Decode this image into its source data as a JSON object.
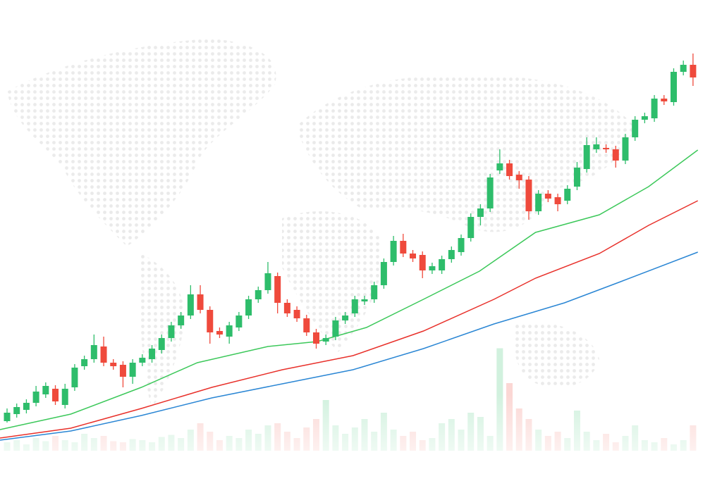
{
  "chart_data": {
    "type": "candlestick",
    "xlim": [
      -0.73,
      74
    ],
    "ylim": [
      0,
      683
    ],
    "up_color": "#2ebd6b",
    "down_color": "#ef4a3c",
    "candles": [
      [
        85,
        103,
        83,
        97
      ],
      [
        95,
        110,
        90,
        105
      ],
      [
        101,
        116,
        96,
        111
      ],
      [
        111,
        135,
        106,
        127
      ],
      [
        123,
        140,
        118,
        135
      ],
      [
        131,
        136,
        108,
        113
      ],
      [
        108,
        138,
        103,
        131
      ],
      [
        133,
        166,
        128,
        161
      ],
      [
        163,
        178,
        158,
        173
      ],
      [
        173,
        208,
        168,
        193
      ],
      [
        191,
        205,
        163,
        168
      ],
      [
        168,
        173,
        158,
        163
      ],
      [
        165,
        170,
        133,
        148
      ],
      [
        148,
        173,
        138,
        168
      ],
      [
        168,
        180,
        163,
        175
      ],
      [
        173,
        193,
        168,
        188
      ],
      [
        186,
        208,
        181,
        203
      ],
      [
        203,
        226,
        198,
        221
      ],
      [
        221,
        240,
        216,
        235
      ],
      [
        235,
        278,
        230,
        265
      ],
      [
        265,
        278,
        238,
        243
      ],
      [
        243,
        248,
        195,
        211
      ],
      [
        213,
        218,
        203,
        208
      ],
      [
        205,
        226,
        195,
        221
      ],
      [
        218,
        240,
        213,
        235
      ],
      [
        235,
        263,
        230,
        258
      ],
      [
        258,
        276,
        253,
        271
      ],
      [
        271,
        311,
        266,
        295
      ],
      [
        291,
        296,
        238,
        253
      ],
      [
        253,
        258,
        233,
        238
      ],
      [
        243,
        248,
        226,
        231
      ],
      [
        231,
        236,
        206,
        211
      ],
      [
        211,
        216,
        188,
        195
      ],
      [
        198,
        208,
        193,
        203
      ],
      [
        205,
        233,
        200,
        228
      ],
      [
        228,
        240,
        223,
        235
      ],
      [
        238,
        263,
        233,
        258
      ],
      [
        255,
        263,
        250,
        258
      ],
      [
        258,
        283,
        253,
        278
      ],
      [
        278,
        316,
        273,
        311
      ],
      [
        311,
        348,
        306,
        341
      ],
      [
        341,
        351,
        318,
        323
      ],
      [
        323,
        328,
        311,
        316
      ],
      [
        321,
        326,
        288,
        299
      ],
      [
        299,
        310,
        294,
        305
      ],
      [
        299,
        320,
        294,
        315
      ],
      [
        315,
        333,
        310,
        328
      ],
      [
        325,
        350,
        320,
        345
      ],
      [
        345,
        380,
        340,
        375
      ],
      [
        375,
        393,
        363,
        387
      ],
      [
        387,
        436,
        382,
        431
      ],
      [
        441,
        471,
        436,
        451
      ],
      [
        451,
        456,
        428,
        433
      ],
      [
        435,
        440,
        415,
        427
      ],
      [
        428,
        433,
        371,
        383
      ],
      [
        383,
        413,
        378,
        408
      ],
      [
        408,
        413,
        396,
        401
      ],
      [
        403,
        408,
        383,
        393
      ],
      [
        398,
        420,
        393,
        415
      ],
      [
        418,
        453,
        413,
        445
      ],
      [
        443,
        488,
        438,
        477
      ],
      [
        471,
        488,
        466,
        478
      ],
      [
        473,
        478,
        466,
        471
      ],
      [
        471,
        476,
        445,
        455
      ],
      [
        455,
        493,
        450,
        488
      ],
      [
        488,
        518,
        483,
        513
      ],
      [
        513,
        523,
        508,
        518
      ],
      [
        515,
        548,
        510,
        543
      ],
      [
        543,
        548,
        534,
        539
      ],
      [
        538,
        586,
        533,
        581
      ],
      [
        581,
        597,
        576,
        591
      ],
      [
        591,
        607,
        561,
        573
      ]
    ],
    "series": [
      {
        "color": "#3cc85a",
        "x": [
          -0.73,
          6.6,
          13.9,
          19.7,
          27,
          32.1,
          37.2,
          43.1,
          48.9,
          54.7,
          61.3,
          66.4,
          71.5
        ],
        "values": [
          73,
          95,
          133,
          168,
          191,
          198,
          218,
          258,
          298,
          353,
          378,
          418,
          470
        ]
      },
      {
        "color": "#e8302a",
        "x": [
          -0.73,
          6.6,
          13.9,
          21.2,
          28.5,
          35.8,
          43.1,
          50.4,
          54.7,
          61.3,
          66.4,
          71.5
        ],
        "values": [
          61,
          75,
          103,
          133,
          158,
          178,
          213,
          258,
          288,
          323,
          363,
          398
        ]
      },
      {
        "color": "#2a86d4",
        "x": [
          -0.73,
          6.6,
          13.9,
          21.2,
          28.5,
          35.8,
          43.1,
          50.4,
          57.7,
          63.5,
          71.5
        ],
        "values": [
          58,
          71,
          93,
          118,
          138,
          158,
          188,
          223,
          253,
          283,
          325
        ]
      }
    ],
    "volume": {
      "ylim": [
        0,
        100
      ],
      "values": [
        8,
        10,
        6,
        12,
        9,
        14,
        10,
        8,
        16,
        12,
        14,
        9,
        8,
        11,
        10,
        8,
        13,
        15,
        12,
        20,
        26,
        18,
        10,
        14,
        12,
        20,
        16,
        24,
        26,
        18,
        12,
        22,
        30,
        48,
        24,
        16,
        22,
        30,
        18,
        36,
        20,
        14,
        18,
        10,
        12,
        26,
        30,
        20,
        36,
        32,
        14,
        97,
        64,
        40,
        30,
        20,
        14,
        18,
        12,
        38,
        18,
        10,
        16,
        8,
        14,
        24,
        10,
        8,
        12,
        6,
        10,
        24
      ]
    }
  }
}
